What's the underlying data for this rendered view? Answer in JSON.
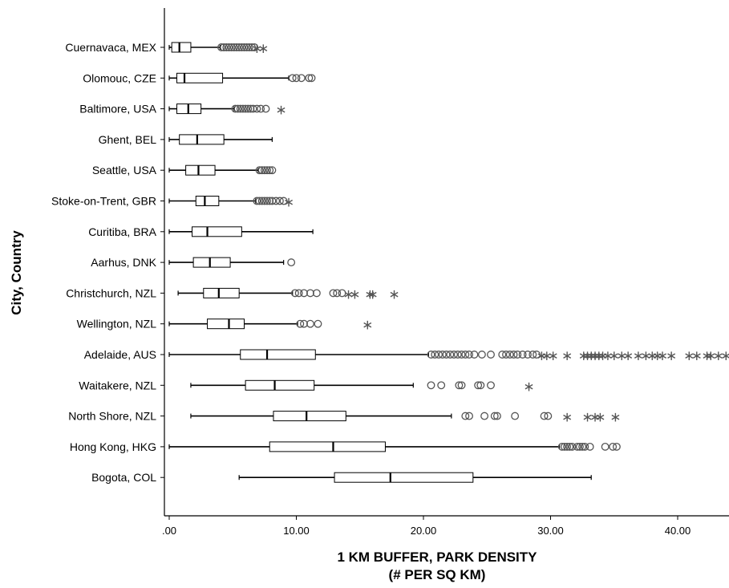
{
  "chart_data": {
    "type": "boxplot",
    "orientation": "horizontal",
    "xlabel_line1": "1 KM BUFFER, PARK DENSITY",
    "xlabel_line2": "(# PER SQ KM)",
    "ylabel": "City, Country",
    "xlim": [
      0,
      44
    ],
    "xticks": [
      0,
      10,
      20,
      30,
      40
    ],
    "xtick_labels": [
      ".00",
      "10.00",
      "20.00",
      "30.00",
      "40.00"
    ],
    "grid": false,
    "colors": {
      "box": "#ffffff",
      "stroke": "#000000",
      "outlier": "#555555"
    },
    "series": [
      {
        "name": "Cuernavaca, MEX",
        "whisker_low": 0.0,
        "q1": 0.2,
        "median": 0.8,
        "q3": 1.7,
        "whisker_high": 4.0,
        "outliers": [
          4.1,
          4.3,
          4.5,
          4.7,
          4.9,
          5.1,
          5.3,
          5.5,
          5.7,
          5.9,
          6.1,
          6.3,
          6.5,
          6.7
        ],
        "extremes": [
          6.9,
          7.4
        ]
      },
      {
        "name": "Olomouc, CZE",
        "whisker_low": 0.0,
        "q1": 0.6,
        "median": 1.2,
        "q3": 4.2,
        "whisker_high": 9.4,
        "outliers": [
          9.7,
          10.0,
          10.4,
          11.0,
          11.2
        ],
        "extremes": []
      },
      {
        "name": "Baltimore, USA",
        "whisker_low": 0.0,
        "q1": 0.6,
        "median": 1.5,
        "q3": 2.5,
        "whisker_high": 5.1,
        "outliers": [
          5.2,
          5.4,
          5.6,
          5.8,
          6.0,
          6.2,
          6.4,
          6.6,
          6.9,
          7.2,
          7.6
        ],
        "extremes": [
          8.8
        ]
      },
      {
        "name": "Ghent, BEL",
        "whisker_low": 0.0,
        "q1": 0.8,
        "median": 2.2,
        "q3": 4.3,
        "whisker_high": 8.1,
        "outliers": [],
        "extremes": []
      },
      {
        "name": "Seattle, USA",
        "whisker_low": 0.0,
        "q1": 1.3,
        "median": 2.3,
        "q3": 3.6,
        "whisker_high": 7.0,
        "outliers": [
          7.1,
          7.3,
          7.5,
          7.7,
          7.9,
          8.1
        ],
        "extremes": []
      },
      {
        "name": "Stoke-on-Trent, GBR",
        "whisker_low": 0.0,
        "q1": 2.1,
        "median": 2.8,
        "q3": 3.9,
        "whisker_high": 6.8,
        "outliers": [
          6.9,
          7.1,
          7.3,
          7.5,
          7.7,
          7.9,
          8.1,
          8.4,
          8.7,
          9.0
        ],
        "extremes": [
          9.4
        ]
      },
      {
        "name": "Curitiba, BRA",
        "whisker_low": 0.0,
        "q1": 1.8,
        "median": 3.0,
        "q3": 5.7,
        "whisker_high": 11.3,
        "outliers": [],
        "extremes": []
      },
      {
        "name": "Aarhus, DNK",
        "whisker_low": 0.0,
        "q1": 1.9,
        "median": 3.2,
        "q3": 4.8,
        "whisker_high": 9.0,
        "outliers": [
          9.6
        ],
        "extremes": []
      },
      {
        "name": "Christchurch, NZL",
        "whisker_low": 0.7,
        "q1": 2.7,
        "median": 3.9,
        "q3": 5.5,
        "whisker_high": 9.7,
        "outliers": [
          9.9,
          10.2,
          10.6,
          11.1,
          11.6,
          12.9,
          13.2,
          13.6
        ],
        "extremes": [
          14.1,
          14.6,
          15.8,
          16.0,
          17.7
        ]
      },
      {
        "name": "Wellington, NZL",
        "whisker_low": 0.0,
        "q1": 3.0,
        "median": 4.7,
        "q3": 5.9,
        "whisker_high": 10.1,
        "outliers": [
          10.3,
          10.6,
          11.1,
          11.7
        ],
        "extremes": [
          15.6
        ]
      },
      {
        "name": "Adelaide, AUS",
        "whisker_low": 0.0,
        "q1": 5.6,
        "median": 7.7,
        "q3": 11.5,
        "whisker_high": 20.4,
        "outliers": [
          20.6,
          20.9,
          21.2,
          21.5,
          21.8,
          22.1,
          22.4,
          22.7,
          23.0,
          23.3,
          23.6,
          24.0,
          24.6,
          25.3,
          26.2,
          26.5,
          26.8,
          27.1,
          27.4,
          27.8,
          28.2,
          28.6,
          28.9
        ],
        "extremes": [
          29.3,
          29.7,
          30.2,
          31.3,
          32.6,
          32.9,
          33.2,
          33.5,
          33.8,
          34.1,
          34.5,
          35.0,
          35.6,
          36.1,
          36.9,
          37.5,
          38.0,
          38.4,
          38.8,
          39.5,
          40.9,
          41.5,
          42.3,
          42.6,
          43.2,
          43.8
        ]
      },
      {
        "name": "Waitakere, NZL",
        "whisker_low": 1.7,
        "q1": 6.0,
        "median": 8.3,
        "q3": 11.4,
        "whisker_high": 19.2,
        "outliers": [
          20.6,
          21.4,
          22.8,
          23.0,
          24.3,
          24.5,
          25.3
        ],
        "extremes": [
          28.3
        ]
      },
      {
        "name": "North Shore, NZL",
        "whisker_low": 1.7,
        "q1": 8.2,
        "median": 10.8,
        "q3": 13.9,
        "whisker_high": 22.2,
        "outliers": [
          23.3,
          23.6,
          24.8,
          25.6,
          25.8,
          27.2,
          29.5,
          29.8
        ],
        "extremes": [
          31.3,
          32.9,
          33.5,
          33.9,
          35.1
        ]
      },
      {
        "name": "Hong Kong, HKG",
        "whisker_low": 0.0,
        "q1": 7.9,
        "median": 12.9,
        "q3": 17.0,
        "whisker_high": 30.7,
        "outliers": [
          30.9,
          31.1,
          31.3,
          31.5,
          31.7,
          32.1,
          32.3,
          32.5,
          32.7,
          33.1,
          34.3,
          34.9,
          35.2
        ],
        "extremes": []
      },
      {
        "name": "Bogota, COL",
        "whisker_low": 5.5,
        "q1": 13.0,
        "median": 17.4,
        "q3": 23.9,
        "whisker_high": 33.2,
        "outliers": [],
        "extremes": []
      }
    ]
  }
}
